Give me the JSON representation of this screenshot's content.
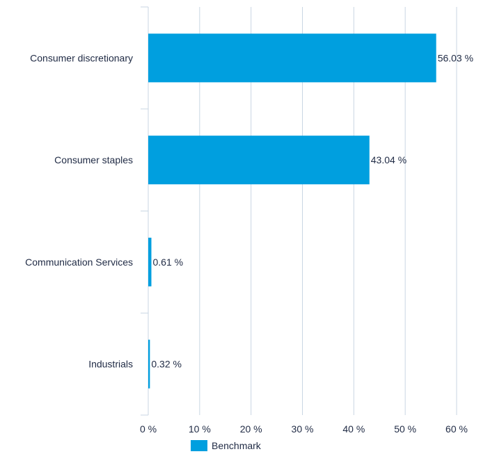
{
  "chart_data": {
    "type": "bar",
    "orientation": "horizontal",
    "categories": [
      "Consumer discretionary",
      "Consumer staples",
      "Communication Services",
      "Industrials"
    ],
    "series": [
      {
        "name": "Benchmark",
        "color": "#009fdf",
        "values": [
          56.03,
          43.04,
          0.61,
          0.32
        ],
        "labels": [
          "56.03 %",
          "43.04 %",
          "0.61 %",
          "0.32 %"
        ]
      }
    ],
    "xlim": [
      0,
      60
    ],
    "xticks": [
      0,
      10,
      20,
      30,
      40,
      50,
      60
    ],
    "xtick_labels": [
      "0 %",
      "10 %",
      "20 %",
      "30 %",
      "40 %",
      "50 %",
      "60 %"
    ],
    "grid": true,
    "legend": {
      "position": "bottom",
      "entries": [
        "Benchmark"
      ]
    },
    "title": "",
    "xlabel": "",
    "ylabel": ""
  }
}
